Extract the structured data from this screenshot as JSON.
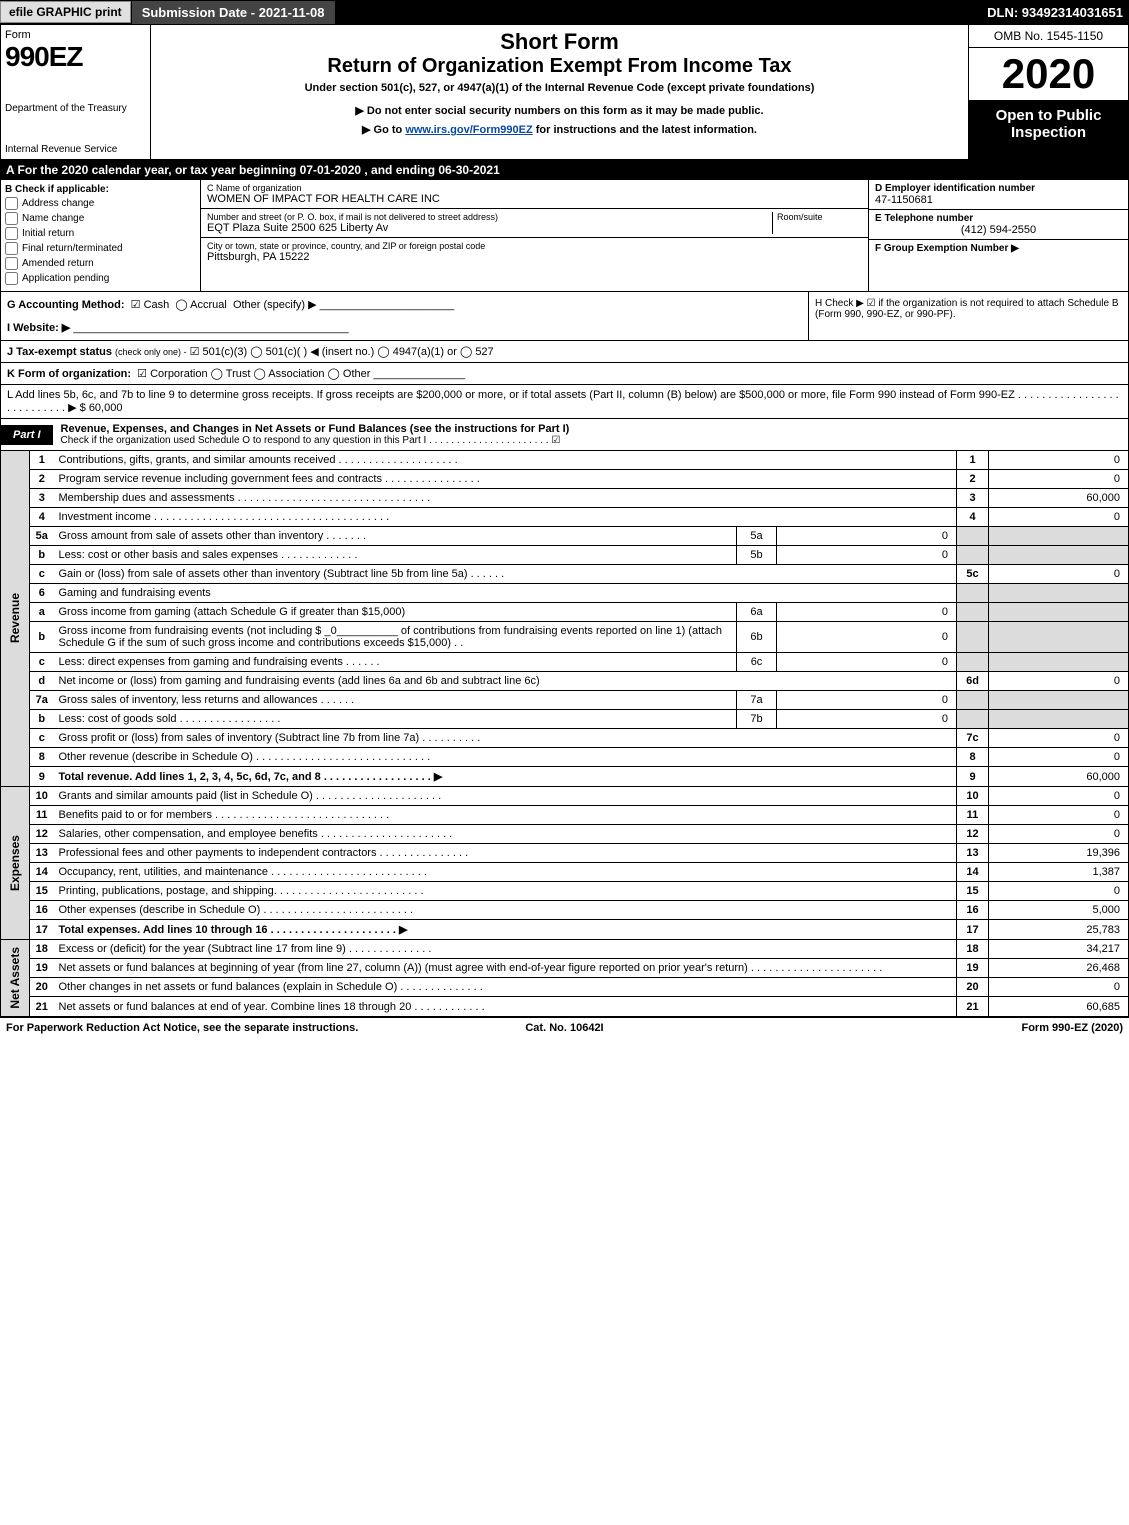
{
  "topbar": {
    "efile": "efile GRAPHIC print",
    "submission": "Submission Date - 2021-11-08",
    "dln": "DLN: 93492314031651"
  },
  "header": {
    "form_label": "Form",
    "form_number": "990EZ",
    "dept1": "Department of the Treasury",
    "dept2": "Internal Revenue Service",
    "short_form": "Short Form",
    "title": "Return of Organization Exempt From Income Tax",
    "under": "Under section 501(c), 527, or 4947(a)(1) of the Internal Revenue Code (except private foundations)",
    "note": "▶ Do not enter social security numbers on this form as it may be made public.",
    "goto_pre": "▶ Go to ",
    "goto_link": "www.irs.gov/Form990EZ",
    "goto_post": " for instructions and the latest information.",
    "omb": "OMB No. 1545-1150",
    "year": "2020",
    "open": "Open to Public Inspection"
  },
  "period": "A For the 2020 calendar year, or tax year beginning 07-01-2020 , and ending 06-30-2021",
  "section_b": {
    "heading": "B  Check if applicable:",
    "checks": [
      "Address change",
      "Name change",
      "Initial return",
      "Final return/terminated",
      "Amended return",
      "Application pending"
    ],
    "c_label": "C Name of organization",
    "c_value": "WOMEN OF IMPACT FOR HEALTH CARE INC",
    "addr_label": "Number and street (or P. O. box, if mail is not delivered to street address)",
    "room_label": "Room/suite",
    "addr_value": "EQT Plaza Suite 2500 625 Liberty Av",
    "city_label": "City or town, state or province, country, and ZIP or foreign postal code",
    "city_value": "Pittsburgh, PA  15222",
    "d_label": "D Employer identification number",
    "d_value": "47-1150681",
    "e_label": "E Telephone number",
    "e_value": "(412) 594-2550",
    "f_label": "F Group Exemption Number  ▶",
    "f_value": ""
  },
  "g": {
    "label": "G Accounting Method:",
    "cash": "Cash",
    "accrual": "Accrual",
    "other": "Other (specify) ▶"
  },
  "h": {
    "text": "H  Check ▶  ☑  if the organization is not required to attach Schedule B (Form 990, 990-EZ, or 990-PF)."
  },
  "i": {
    "label": "I Website: ▶",
    "value": ""
  },
  "j": {
    "label": "J Tax-exempt status",
    "sub": "(check only one) -",
    "opts": "☑ 501(c)(3)  ◯ 501(c)(  )  ◀ (insert no.)  ◯ 4947(a)(1) or  ◯ 527"
  },
  "k": {
    "label": "K Form of organization:",
    "opts": "☑ Corporation   ◯ Trust   ◯ Association   ◯ Other"
  },
  "l": {
    "text": "L Add lines 5b, 6c, and 7b to line 9 to determine gross receipts. If gross receipts are $200,000 or more, or if total assets (Part II, column (B) below) are $500,000 or more, file Form 990 instead of Form 990-EZ  . . . . . . . . . . . . . . . . . . . . . . . . . . .  ▶ $ 60,000"
  },
  "part1": {
    "label": "Part I",
    "title": "Revenue, Expenses, and Changes in Net Assets or Fund Balances (see the instructions for Part I)",
    "sub": "Check if the organization used Schedule O to respond to any question in this Part I . . . . . . . . . . . . . . . . . . . . . . ☑"
  },
  "sections": {
    "revenue": "Revenue",
    "expenses": "Expenses",
    "netassets": "Net Assets"
  },
  "rows": [
    {
      "section": "revenue",
      "ln": "1",
      "desc": "Contributions, gifts, grants, and similar amounts received  . . . . . . . . . . . . . . . . . . . .",
      "num": "1",
      "val": "0"
    },
    {
      "section": "revenue",
      "ln": "2",
      "desc": "Program service revenue including government fees and contracts  . . . . . . . . . . . . . . . .",
      "num": "2",
      "val": "0"
    },
    {
      "section": "revenue",
      "ln": "3",
      "desc": "Membership dues and assessments  . . . . . . . . . . . . . . . . . . . . . . . . . . . . . . . .",
      "num": "3",
      "val": "60,000"
    },
    {
      "section": "revenue",
      "ln": "4",
      "desc": "Investment income  . . . . . . . . . . . . . . . . . . . . . . . . . . . . . . . . . . . . . . .",
      "num": "4",
      "val": "0"
    },
    {
      "section": "revenue",
      "ln": "5a",
      "desc": "Gross amount from sale of assets other than inventory  . . . . . . .",
      "sub_num": "5a",
      "sub_val": "0"
    },
    {
      "section": "revenue",
      "ln": "b",
      "desc": "Less: cost or other basis and sales expenses  . . . . . . . . . . . . .",
      "sub_num": "5b",
      "sub_val": "0"
    },
    {
      "section": "revenue",
      "ln": "c",
      "desc": "Gain or (loss) from sale of assets other than inventory (Subtract line 5b from line 5a)  . . . . . .",
      "num": "5c",
      "val": "0"
    },
    {
      "section": "revenue",
      "ln": "6",
      "desc": "Gaming and fundraising events",
      "header": true
    },
    {
      "section": "revenue",
      "ln": "a",
      "desc": "Gross income from gaming (attach Schedule G if greater than $15,000)",
      "sub_num": "6a",
      "sub_val": "0"
    },
    {
      "section": "revenue",
      "ln": "b",
      "desc": "Gross income from fundraising events (not including $ _0__________ of contributions from fundraising events reported on line 1) (attach Schedule G if the sum of such gross income and contributions exceeds $15,000)  . .",
      "sub_num": "6b",
      "sub_val": "0"
    },
    {
      "section": "revenue",
      "ln": "c",
      "desc": "Less: direct expenses from gaming and fundraising events  . . . . . .",
      "sub_num": "6c",
      "sub_val": "0"
    },
    {
      "section": "revenue",
      "ln": "d",
      "desc": "Net income or (loss) from gaming and fundraising events (add lines 6a and 6b and subtract line 6c)",
      "num": "6d",
      "val": "0"
    },
    {
      "section": "revenue",
      "ln": "7a",
      "desc": "Gross sales of inventory, less returns and allowances  . . . . . .",
      "sub_num": "7a",
      "sub_val": "0"
    },
    {
      "section": "revenue",
      "ln": "b",
      "desc": "Less: cost of goods sold       . . . . . . . . . . . . . . . . .",
      "sub_num": "7b",
      "sub_val": "0"
    },
    {
      "section": "revenue",
      "ln": "c",
      "desc": "Gross profit or (loss) from sales of inventory (Subtract line 7b from line 7a)  . . . . . . . . . .",
      "num": "7c",
      "val": "0"
    },
    {
      "section": "revenue",
      "ln": "8",
      "desc": "Other revenue (describe in Schedule O)  . . . . . . . . . . . . . . . . . . . . . . . . . . . . .",
      "num": "8",
      "val": "0"
    },
    {
      "section": "revenue",
      "ln": "9",
      "desc": "Total revenue. Add lines 1, 2, 3, 4, 5c, 6d, 7c, and 8  . . . . . . . . . . . . . . . . . .   ▶",
      "num": "9",
      "val": "60,000",
      "bold": true
    },
    {
      "section": "expenses",
      "ln": "10",
      "desc": "Grants and similar amounts paid (list in Schedule O)  . . . . . . . . . . . . . . . . . . . . .",
      "num": "10",
      "val": "0"
    },
    {
      "section": "expenses",
      "ln": "11",
      "desc": "Benefits paid to or for members      . . . . . . . . . . . . . . . . . . . . . . . . . . . . .",
      "num": "11",
      "val": "0"
    },
    {
      "section": "expenses",
      "ln": "12",
      "desc": "Salaries, other compensation, and employee benefits . . . . . . . . . . . . . . . . . . . . . .",
      "num": "12",
      "val": "0"
    },
    {
      "section": "expenses",
      "ln": "13",
      "desc": "Professional fees and other payments to independent contractors  . . . . . . . . . . . . . . .",
      "num": "13",
      "val": "19,396"
    },
    {
      "section": "expenses",
      "ln": "14",
      "desc": "Occupancy, rent, utilities, and maintenance . . . . . . . . . . . . . . . . . . . . . . . . . .",
      "num": "14",
      "val": "1,387"
    },
    {
      "section": "expenses",
      "ln": "15",
      "desc": "Printing, publications, postage, and shipping.  . . . . . . . . . . . . . . . . . . . . . . . .",
      "num": "15",
      "val": "0"
    },
    {
      "section": "expenses",
      "ln": "16",
      "desc": "Other expenses (describe in Schedule O)     . . . . . . . . . . . . . . . . . . . . . . . . .",
      "num": "16",
      "val": "5,000"
    },
    {
      "section": "expenses",
      "ln": "17",
      "desc": "Total expenses. Add lines 10 through 16     . . . . . . . . . . . . . . . . . . . . .   ▶",
      "num": "17",
      "val": "25,783",
      "bold": true
    },
    {
      "section": "netassets",
      "ln": "18",
      "desc": "Excess or (deficit) for the year (Subtract line 17 from line 9)      . . . . . . . . . . . . . .",
      "num": "18",
      "val": "34,217"
    },
    {
      "section": "netassets",
      "ln": "19",
      "desc": "Net assets or fund balances at beginning of year (from line 27, column (A)) (must agree with end-of-year figure reported on prior year's return) . . . . . . . . . . . . . . . . . . . . . .",
      "num": "19",
      "val": "26,468"
    },
    {
      "section": "netassets",
      "ln": "20",
      "desc": "Other changes in net assets or fund balances (explain in Schedule O) . . . . . . . . . . . . . .",
      "num": "20",
      "val": "0"
    },
    {
      "section": "netassets",
      "ln": "21",
      "desc": "Net assets or fund balances at end of year. Combine lines 18 through 20 . . . . . . . . . . . .",
      "num": "21",
      "val": "60,685"
    }
  ],
  "footer": {
    "left": "For Paperwork Reduction Act Notice, see the separate instructions.",
    "center": "Cat. No. 10642I",
    "right_pre": "Form ",
    "right_bold": "990-EZ",
    "right_post": " (2020)"
  },
  "colors": {
    "black": "#000000",
    "white": "#ffffff",
    "shaded": "#dcdcdc",
    "link": "#0849a3",
    "btn_bg": "#e0e0e0",
    "sub_bg": "#444444"
  }
}
